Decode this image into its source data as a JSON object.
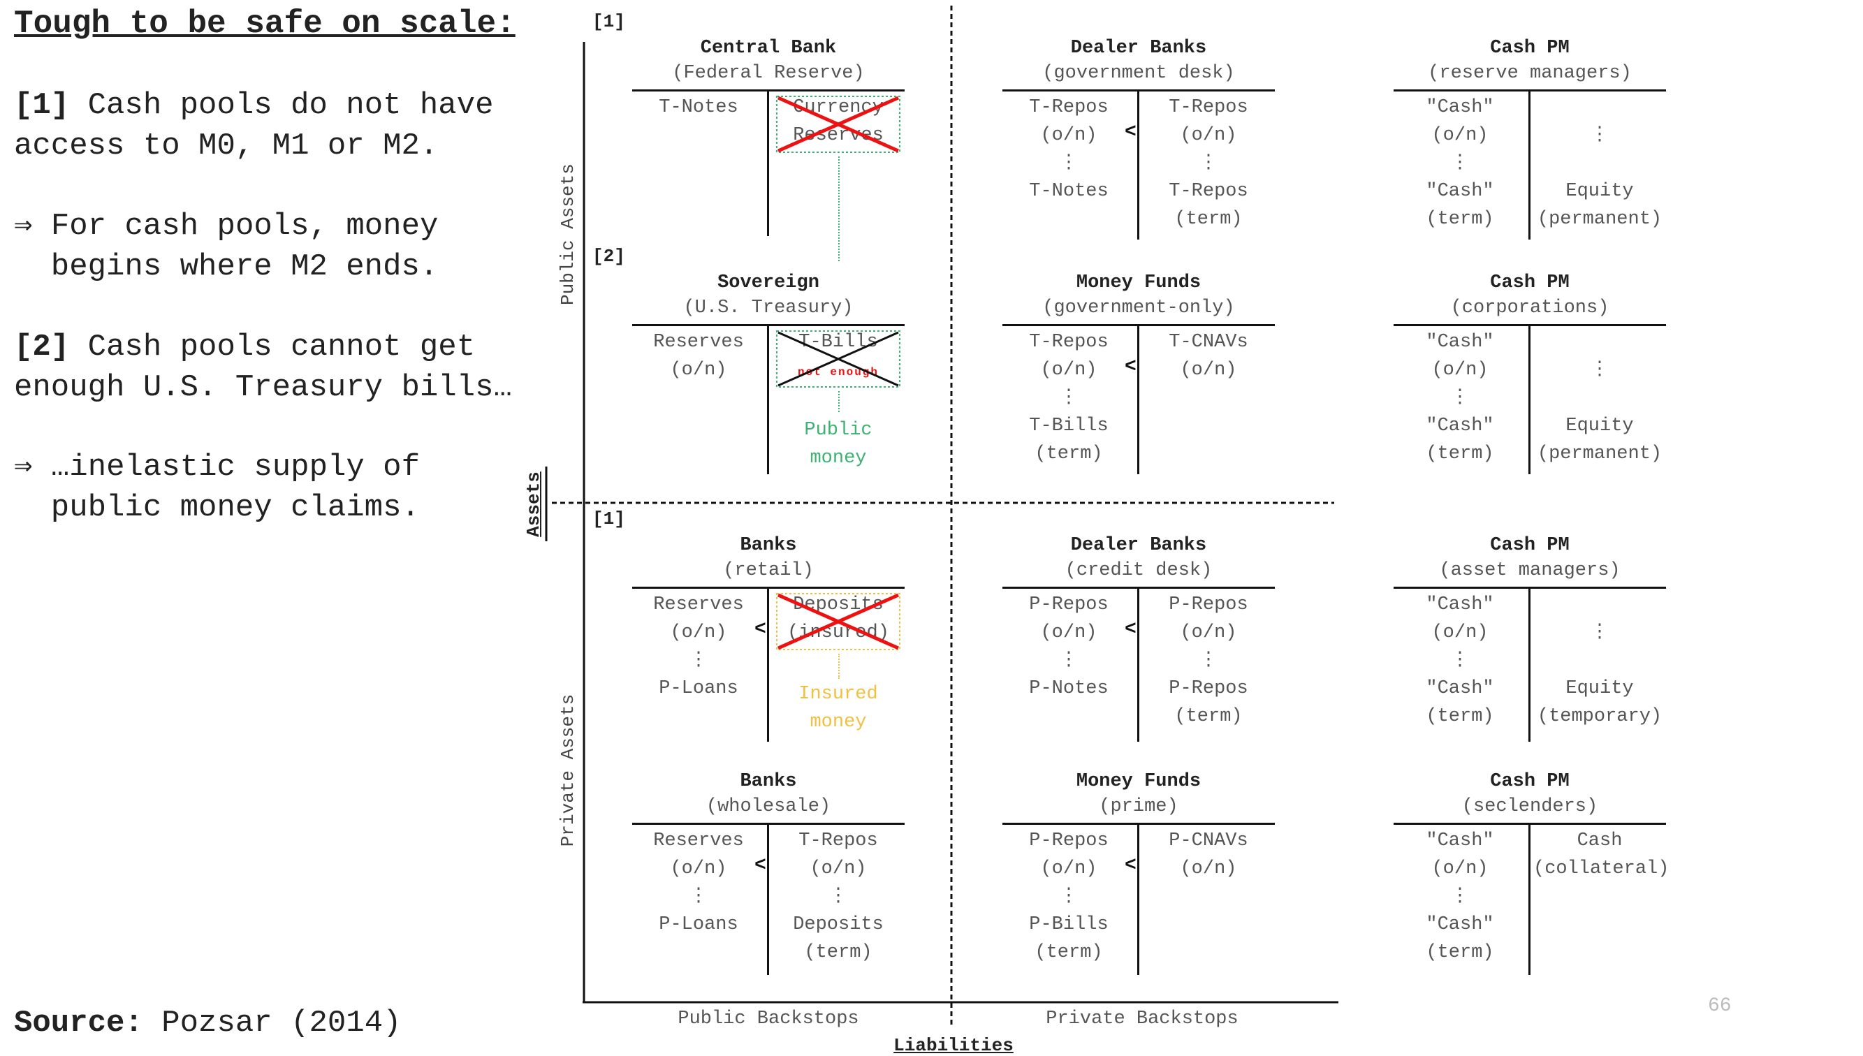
{
  "title": "Tough to be safe on scale:",
  "bullets": [
    {
      "tag": "[1]",
      "text": " Cash pools do not have\naccess to M0, M1 or M2."
    },
    {
      "tag": "⇒",
      "text": " For cash pools, money\n  begins where M2 ends."
    },
    {
      "tag": "[2]",
      "text": " Cash pools cannot get\nenough U.S. Treasury bills…"
    },
    {
      "tag": "⇒",
      "text": " …inelastic supply of\n  public money claims."
    }
  ],
  "source": {
    "label": "Source:",
    "text": " Pozsar (2014)"
  },
  "markers": {
    "m1_top": "[1]",
    "m2": "[2]",
    "m1_bottom": "[1]"
  },
  "axes": {
    "public_assets": "Public Assets",
    "private_assets": "Private Assets",
    "assets": "Assets",
    "liabilities": "Liabilities",
    "public_backstops": "Public Backstops",
    "private_backstops": "Private Backstops"
  },
  "sheets": {
    "central_bank": {
      "title": "Central Bank",
      "subtitle": "(Federal Reserve)",
      "left": "T-Notes",
      "right": "Currency\nReserves"
    },
    "sovereign": {
      "title": "Sovereign",
      "subtitle": "(U.S. Treasury)",
      "left": "Reserves\n(o/n)",
      "right": "T-Bills",
      "right_note": "not enough",
      "below": "Public\nmoney"
    },
    "banks_retail": {
      "title": "Banks",
      "subtitle": "(retail)",
      "left": "Reserves\n(o/n)\n⋮\nP-Loans",
      "right": "Deposits\n(insured)",
      "lt": "<",
      "below": "Insured\nmoney"
    },
    "banks_wholesale": {
      "title": "Banks",
      "subtitle": "(wholesale)",
      "left": "Reserves\n(o/n)\n⋮\nP-Loans",
      "right": "T-Repos\n(o/n)\n⋮\nDeposits\n(term)",
      "lt": "<"
    },
    "dealer_gov": {
      "title": "Dealer Banks",
      "subtitle": "(government desk)",
      "left": "T-Repos\n(o/n)\n⋮\nT-Notes",
      "right": "T-Repos\n(o/n)\n⋮\nT-Repos\n(term)",
      "lt": "<"
    },
    "mmf_gov": {
      "title": "Money Funds",
      "subtitle": "(government-only)",
      "left": "T-Repos\n(o/n)\n⋮\nT-Bills\n(term)",
      "right": "T-CNAVs\n(o/n)",
      "lt": "<"
    },
    "dealer_credit": {
      "title": "Dealer Banks",
      "subtitle": "(credit desk)",
      "left": "P-Repos\n(o/n)\n⋮\nP-Notes",
      "right": "P-Repos\n(o/n)\n⋮\nP-Repos\n(term)",
      "lt": "<"
    },
    "mmf_prime": {
      "title": "Money Funds",
      "subtitle": "(prime)",
      "left": "P-Repos\n(o/n)\n⋮\nP-Bills\n(term)",
      "right": "P-CNAVs\n(o/n)",
      "lt": "<"
    },
    "cash_reserve": {
      "title": "Cash PM",
      "subtitle": "(reserve managers)",
      "left": "\"Cash\"\n(o/n)\n⋮\n\"Cash\"\n(term)",
      "right": "\n⋮\n\nEquity\n(permanent)"
    },
    "cash_corp": {
      "title": "Cash PM",
      "subtitle": "(corporations)",
      "left": "\"Cash\"\n(o/n)\n⋮\n\"Cash\"\n(term)",
      "right": "\n⋮\n\nEquity\n(permanent)"
    },
    "cash_asset": {
      "title": "Cash PM",
      "subtitle": "(asset managers)",
      "left": "\"Cash\"\n(o/n)\n⋮\n\"Cash\"\n(term)",
      "right": "\n⋮\n\nEquity\n(temporary)"
    },
    "cash_sec": {
      "title": "Cash PM",
      "subtitle": "(seclenders)",
      "left": "\"Cash\"\n(o/n)\n⋮\n\"Cash\"\n(term)",
      "right": "Cash\n(collateral)"
    }
  },
  "colors": {
    "public_money": "#3cb371",
    "insured_money": "#f0c040",
    "cross": "#ee1111",
    "note": "#ee1111"
  },
  "page_number": "66"
}
